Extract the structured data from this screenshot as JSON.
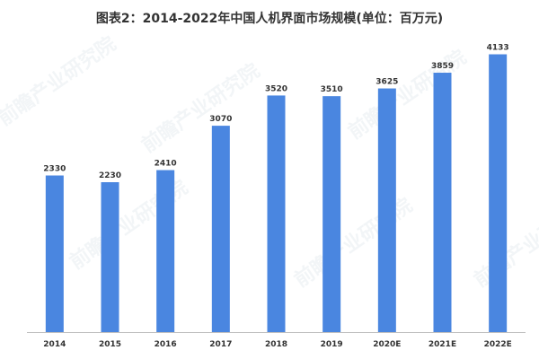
{
  "chart_data": {
    "type": "bar",
    "title": "图表2：2014-2022年中国人机界面市场规模(单位：百万元)",
    "categories": [
      "2014",
      "2015",
      "2016",
      "2017",
      "2018",
      "2019",
      "2020E",
      "2021E",
      "2022E"
    ],
    "values": [
      2330,
      2230,
      2410,
      3070,
      3520,
      3510,
      3625,
      3859,
      4133
    ],
    "data_labels": [
      "2330",
      "2230",
      "2410",
      "3070",
      "3520",
      "3510",
      "3625",
      "3859",
      "4133"
    ],
    "ylim": [
      0,
      4300
    ],
    "grid": false,
    "legend": "none",
    "bar_color": "#4a86e0",
    "axis_color": "#bfbfbf"
  },
  "watermark_text": "前瞻产业研究院"
}
